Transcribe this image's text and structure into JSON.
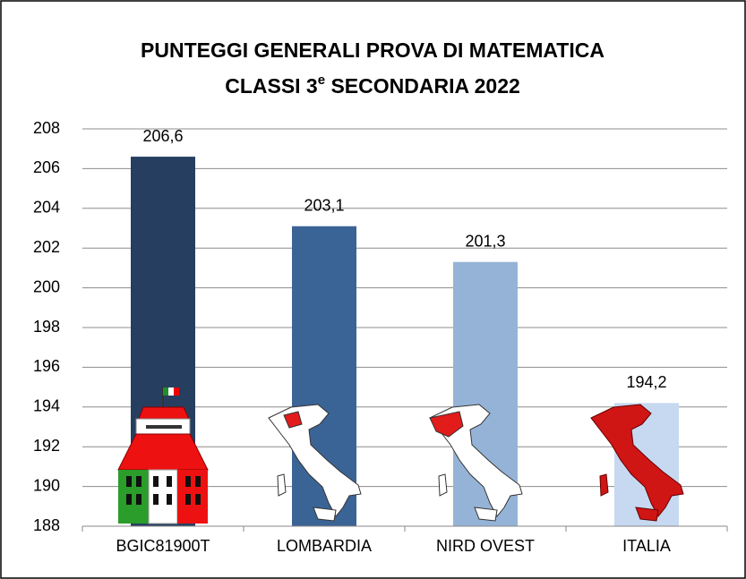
{
  "chart_data": {
    "type": "bar",
    "title": "PUNTEGGI GENERALI PROVA DI MATEMATICA",
    "subtitle": [
      "CLASSI 3",
      "e",
      " SECONDARIA 2022"
    ],
    "categories": [
      "BGIC81900T",
      "LOMBARDIA",
      "NIRD OVEST",
      "ITALIA"
    ],
    "values": [
      206.6,
      203.1,
      201.3,
      194.2
    ],
    "value_labels": [
      "206,6",
      "203,1",
      "201,3",
      "194,2"
    ],
    "colors": [
      "#263f60",
      "#3b6496",
      "#95b3d7",
      "#c6d9f1"
    ],
    "ylim": [
      188,
      208
    ],
    "yticks": [
      188,
      190,
      192,
      194,
      196,
      198,
      200,
      202,
      204,
      206,
      208
    ],
    "grid": true
  }
}
